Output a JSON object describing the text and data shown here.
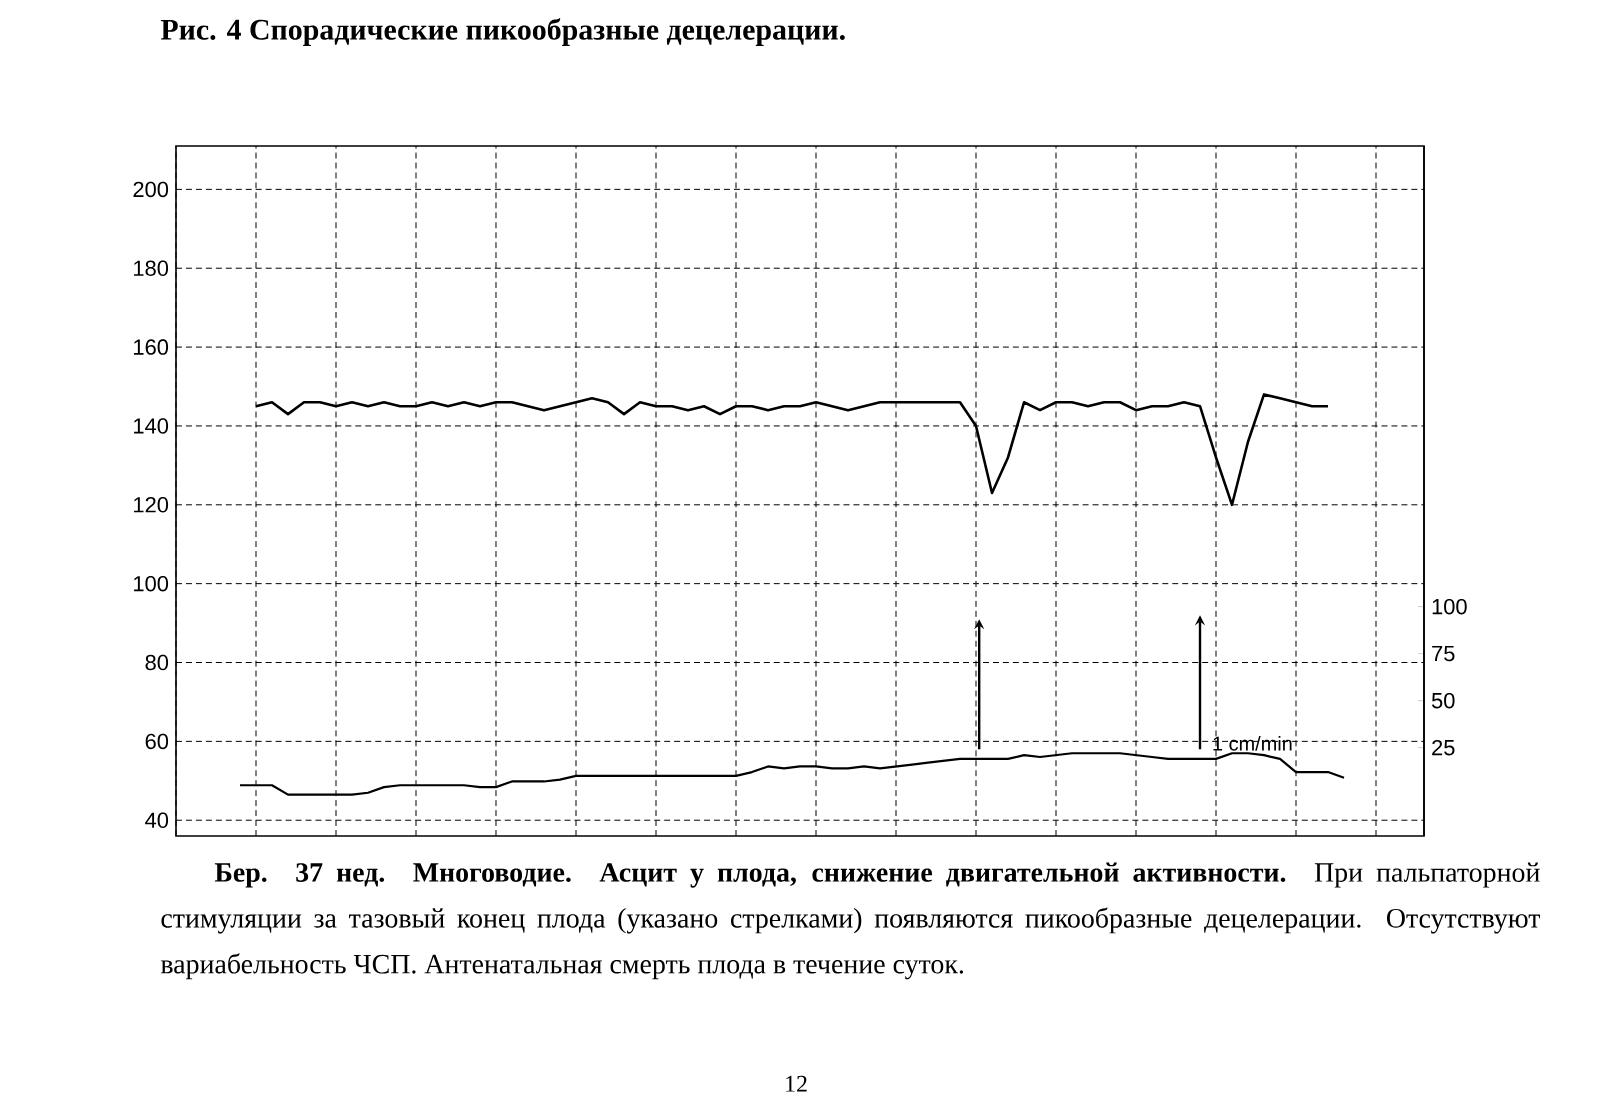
{
  "chart_data": {
    "type": "line",
    "title": "Рис. 4 Спорадические пикообразные децелерации.",
    "categories": [
      null,
      null,
      null,
      null,
      null,
      null,
      null,
      null,
      null,
      null,
      null,
      null,
      null,
      null,
      null,
      null,
      null,
      null,
      null,
      null,
      null,
      null,
      null,
      null,
      null,
      null,
      null,
      null,
      null,
      null,
      null,
      null,
      null,
      null,
      null,
      null,
      null,
      null,
      null,
      null,
      null,
      null,
      null,
      null,
      null,
      null,
      null,
      null,
      null,
      null,
      null,
      null,
      null,
      null,
      null,
      null,
      null,
      null,
      null,
      null,
      null,
      null,
      null,
      null,
      null,
      null,
      null,
      null,
      null,
      null,
      null,
      null,
      null,
      null,
      null,
      null,
      null,
      null,
      null
    ],
    "series": [
      {
        "color": "#000000",
        "values": [
          null,
          null,
          null,
          null,
          null,
          145,
          146,
          143,
          146,
          146,
          145,
          146,
          145,
          146,
          145,
          145,
          146,
          145,
          146,
          145,
          146,
          146,
          145,
          144,
          145,
          146,
          147,
          146,
          143,
          146,
          145,
          145,
          144,
          145,
          143,
          145,
          145,
          144,
          145,
          145,
          146,
          145,
          144,
          145,
          146,
          146,
          146,
          146,
          146,
          146,
          140,
          123,
          132,
          146,
          144,
          146,
          146,
          145,
          146,
          146,
          144,
          145,
          145,
          146,
          145,
          132,
          120,
          136,
          148,
          147,
          146,
          145,
          145,
          null,
          null,
          null,
          null,
          null,
          null
        ]
      },
      {
        "color": "#000000",
        "axis": "y2",
        "values": [
          null,
          null,
          null,
          null,
          5,
          5,
          5,
          0,
          0,
          0,
          0,
          0,
          1,
          4,
          5,
          5,
          5,
          5,
          5,
          4,
          4,
          7,
          7,
          7,
          8,
          10,
          10,
          10,
          10,
          10,
          10,
          10,
          10,
          10,
          10,
          10,
          12,
          15,
          14,
          15,
          15,
          14,
          14,
          15,
          14,
          15,
          16,
          17,
          18,
          19,
          19,
          19,
          19,
          21,
          20,
          21,
          22,
          22,
          22,
          22,
          21,
          20,
          19,
          19,
          19,
          19,
          22,
          22,
          21,
          19,
          12,
          12,
          12,
          9,
          null,
          null,
          null,
          null,
          null
        ]
      }
    ],
    "ylim": [
      36,
      211
    ],
    "yticks": [
      40,
      60,
      80,
      100,
      120,
      140,
      160,
      180,
      200
    ],
    "y2lim": [
      -22,
      345
    ],
    "y2ticks": [
      25,
      50,
      75,
      100
    ],
    "grid": true,
    "marker": "none",
    "line_style": "solid",
    "annotations": [
      "**Бер. 37 нед. Многоводие. Асцит у плода, снижение двигательной активности.** При пальпаторной стимуляции за тазовый конец плода (указано стрелками) появляются пикообразные децелерации. Отсутствуют вариабельность ЧСП. Антенатальная смерть плода в течение суток.",
      "1 cm/min",
      "12"
    ]
  }
}
